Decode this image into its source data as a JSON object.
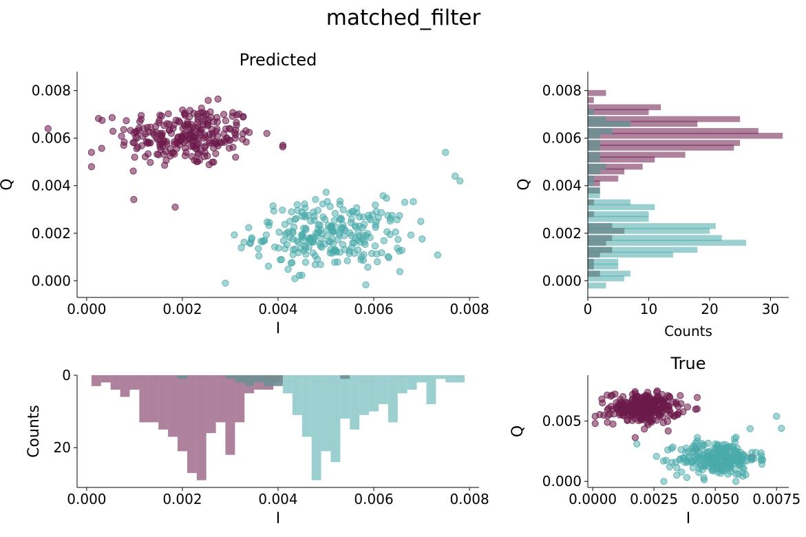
{
  "figure": {
    "title": "matched_filter"
  },
  "colors": {
    "class0": "#6b1a4a",
    "class1": "#4aaaaa",
    "overlap": "#6e8f94"
  },
  "chart_data": [
    {
      "id": "scatter_main",
      "type": "scatter",
      "title": "Predicted",
      "xlabel": "I",
      "ylabel": "Q",
      "xlim": [
        -0.0002,
        0.0082
      ],
      "ylim": [
        -0.0007,
        0.0088
      ],
      "xticks": [
        {
          "v": 0.0,
          "label": "0.000"
        },
        {
          "v": 0.002,
          "label": "0.002"
        },
        {
          "v": 0.004,
          "label": "0.004"
        },
        {
          "v": 0.006,
          "label": "0.006"
        },
        {
          "v": 0.008,
          "label": "0.008"
        }
      ],
      "yticks": [
        {
          "v": 0.0,
          "label": "0.000"
        },
        {
          "v": 0.002,
          "label": "0.002"
        },
        {
          "v": 0.004,
          "label": "0.004"
        },
        {
          "v": 0.006,
          "label": "0.006"
        },
        {
          "v": 0.008,
          "label": "0.008"
        }
      ],
      "series": [
        {
          "cluster": {
            "center": [
              0.0021,
              0.0061
            ],
            "spread": [
              0.0009,
              0.0008
            ],
            "n": 250
          },
          "outliers": [
            [
              0.00185,
              0.0031
            ],
            [
              0.0001,
              0.0054
            ],
            [
              0.0001,
              0.0048
            ],
            [
              0.0041,
              0.0057
            ]
          ]
        },
        {
          "cluster": {
            "center": [
              0.0051,
              0.0019
            ],
            "spread": [
              0.001,
              0.0009
            ],
            "n": 250
          },
          "outliers": [
            [
              0.0078,
              0.0042
            ],
            [
              0.0077,
              0.0044
            ],
            [
              0.0075,
              0.0054
            ],
            [
              0.0029,
              -0.0001
            ]
          ]
        }
      ]
    },
    {
      "id": "hist_q",
      "type": "bar",
      "orientation": "horizontal",
      "xlabel": "Counts",
      "ylabel": "Q",
      "xlim": [
        0,
        33
      ],
      "ylim": [
        -0.0007,
        0.0088
      ],
      "xticks": [
        {
          "v": 0,
          "label": "0"
        },
        {
          "v": 10,
          "label": "10"
        },
        {
          "v": 20,
          "label": "20"
        },
        {
          "v": 30,
          "label": "30"
        }
      ],
      "yticks": [
        {
          "v": 0.0,
          "label": "0.000"
        },
        {
          "v": 0.002,
          "label": "0.002"
        },
        {
          "v": 0.004,
          "label": "0.004"
        },
        {
          "v": 0.006,
          "label": "0.006"
        },
        {
          "v": 0.008,
          "label": "0.008"
        }
      ],
      "bin_width": 0.00025,
      "series": [
        {
          "bins": [
            [
              0.0079,
              3
            ],
            [
              0.0076,
              1
            ],
            [
              0.0073,
              12
            ],
            [
              0.0071,
              10
            ],
            [
              0.0068,
              25
            ],
            [
              0.0066,
              18
            ],
            [
              0.0063,
              28
            ],
            [
              0.0061,
              32
            ],
            [
              0.0058,
              25
            ],
            [
              0.0056,
              24
            ],
            [
              0.0053,
              16
            ],
            [
              0.0051,
              11
            ],
            [
              0.0048,
              9
            ],
            [
              0.0046,
              6
            ],
            [
              0.0043,
              5
            ],
            [
              0.0041,
              2
            ]
          ]
        },
        {
          "bins": [
            [
              0.0041,
              1
            ],
            [
              0.0038,
              2
            ],
            [
              0.0036,
              2
            ],
            [
              0.0033,
              7
            ],
            [
              0.0031,
              11
            ],
            [
              0.0028,
              10
            ],
            [
              0.0026,
              10
            ],
            [
              0.0023,
              21
            ],
            [
              0.0021,
              20
            ],
            [
              0.0018,
              22
            ],
            [
              0.0016,
              26
            ],
            [
              0.0013,
              18
            ],
            [
              0.0011,
              14
            ],
            [
              0.0008,
              5
            ],
            [
              0.0006,
              5
            ],
            [
              0.0003,
              7
            ],
            [
              0.0001,
              6
            ],
            [
              -0.0002,
              3
            ]
          ]
        },
        {
          "bins": [
            [
              0.0071,
              1
            ],
            [
              0.0068,
              3
            ],
            [
              0.0066,
              7
            ],
            [
              0.0063,
              4
            ],
            [
              0.0061,
              2
            ],
            [
              0.0058,
              2
            ],
            [
              0.0056,
              2
            ],
            [
              0.0053,
              2
            ],
            [
              0.0051,
              2
            ],
            [
              0.0048,
              3
            ],
            [
              0.0046,
              2
            ],
            [
              0.0043,
              1
            ],
            [
              0.0038,
              2
            ],
            [
              0.0033,
              1
            ],
            [
              0.0028,
              1
            ],
            [
              0.0023,
              4
            ],
            [
              0.0021,
              6
            ],
            [
              0.0018,
              4
            ],
            [
              0.0016,
              3
            ],
            [
              0.0013,
              4
            ],
            [
              0.0011,
              2
            ],
            [
              0.0008,
              1
            ],
            [
              0.0006,
              1
            ],
            [
              0.0003,
              2
            ]
          ]
        }
      ]
    },
    {
      "id": "hist_i",
      "type": "bar",
      "orientation": "vertical",
      "inverted_y": true,
      "xlabel": "I",
      "ylabel": "Counts",
      "xlim": [
        -0.0002,
        0.0082
      ],
      "ylim": [
        0,
        31
      ],
      "xticks": [
        {
          "v": 0.0,
          "label": "0.000"
        },
        {
          "v": 0.002,
          "label": "0.002"
        },
        {
          "v": 0.004,
          "label": "0.004"
        },
        {
          "v": 0.006,
          "label": "0.006"
        },
        {
          "v": 0.008,
          "label": "0.008"
        }
      ],
      "yticks": [
        {
          "v": 0,
          "label": "0"
        },
        {
          "v": 20,
          "label": "20"
        }
      ],
      "bin_width": 0.0002,
      "series": [
        {
          "bins": [
            [
              0.0002,
              3
            ],
            [
              0.0004,
              2
            ],
            [
              0.0006,
              4
            ],
            [
              0.0008,
              6
            ],
            [
              0.001,
              4
            ],
            [
              0.0012,
              13
            ],
            [
              0.0014,
              13
            ],
            [
              0.0016,
              15
            ],
            [
              0.0018,
              17
            ],
            [
              0.002,
              21
            ],
            [
              0.0022,
              27
            ],
            [
              0.0024,
              29
            ],
            [
              0.0026,
              16
            ],
            [
              0.0028,
              13
            ],
            [
              0.003,
              22
            ],
            [
              0.0032,
              13
            ],
            [
              0.0034,
              5
            ],
            [
              0.0036,
              4
            ],
            [
              0.0038,
              4
            ],
            [
              0.004,
              2
            ]
          ]
        },
        {
          "bins": [
            [
              0.0042,
              5
            ],
            [
              0.0044,
              11
            ],
            [
              0.0046,
              17
            ],
            [
              0.0048,
              29
            ],
            [
              0.005,
              21
            ],
            [
              0.0052,
              24
            ],
            [
              0.0054,
              12
            ],
            [
              0.0056,
              15
            ],
            [
              0.0058,
              11
            ],
            [
              0.006,
              10
            ],
            [
              0.0062,
              8
            ],
            [
              0.0064,
              13
            ],
            [
              0.0066,
              5
            ],
            [
              0.0068,
              4
            ],
            [
              0.007,
              2
            ],
            [
              0.0072,
              8
            ],
            [
              0.0074,
              1
            ],
            [
              0.0076,
              2
            ],
            [
              0.0078,
              2
            ]
          ]
        },
        {
          "bins": [
            [
              0.004,
              3
            ],
            [
              0.0038,
              3
            ],
            [
              0.0036,
              2
            ],
            [
              0.0034,
              3
            ],
            [
              0.0032,
              2
            ],
            [
              0.003,
              1
            ],
            [
              0.002,
              1
            ],
            [
              0.0054,
              1
            ]
          ]
        }
      ]
    },
    {
      "id": "scatter_true",
      "type": "scatter",
      "title": "True",
      "xlabel": "I",
      "ylabel": "Q",
      "xlim": [
        -0.0002,
        0.008
      ],
      "ylim": [
        -0.0005,
        0.0088
      ],
      "xticks": [
        {
          "v": 0.0,
          "label": "0.0000"
        },
        {
          "v": 0.0025,
          "label": "0.0025"
        },
        {
          "v": 0.005,
          "label": "0.0050"
        },
        {
          "v": 0.0075,
          "label": "0.0075"
        }
      ],
      "yticks": [
        {
          "v": 0.0,
          "label": "0.000"
        },
        {
          "v": 0.005,
          "label": "0.005"
        }
      ],
      "series": [
        {
          "cluster": {
            "center": [
              0.0021,
              0.0061
            ],
            "spread": [
              0.0009,
              0.0008
            ],
            "n": 250
          },
          "outliers": [
            [
              0.0042,
              0.0027
            ],
            [
              0.0065,
              0.002
            ],
            [
              0.0001,
              0.0054
            ],
            [
              0.0001,
              0.0048
            ]
          ]
        },
        {
          "cluster": {
            "center": [
              0.0051,
              0.0019
            ],
            "spread": [
              0.001,
              0.0009
            ],
            "n": 250
          },
          "outliers": [
            [
              0.0018,
              0.0031
            ],
            [
              0.0075,
              0.0054
            ],
            [
              0.0077,
              0.0044
            ],
            [
              0.0029,
              0.0
            ]
          ]
        }
      ]
    }
  ]
}
